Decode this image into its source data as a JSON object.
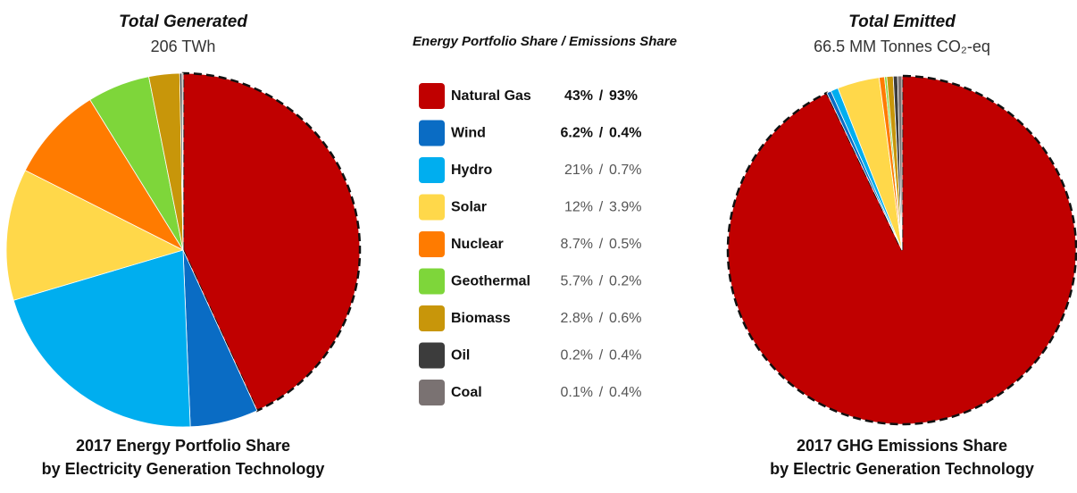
{
  "chart_data": [
    {
      "type": "pie",
      "title": "Total Generated",
      "subtitle": "206 TWh",
      "caption": [
        "2017 Energy Portfolio Share",
        "by Electricity Generation Technology"
      ],
      "categories": [
        "Natural Gas",
        "Wind",
        "Hydro",
        "Solar",
        "Nuclear",
        "Geothermal",
        "Biomass",
        "Oil",
        "Coal"
      ],
      "values": [
        43,
        6.2,
        21,
        12,
        8.7,
        5.7,
        2.8,
        0.2,
        0.1
      ],
      "value_labels": [
        "43%",
        "6.2%",
        "21%",
        "12%",
        "8.7%",
        "5.7%",
        "2.8%",
        "0.2%",
        "0.1%"
      ],
      "colors": [
        "#c00000",
        "#0a6cc4",
        "#00aeef",
        "#ffd84a",
        "#ff7b00",
        "#7ed63a",
        "#c8960a",
        "#3c3c3c",
        "#7a7272"
      ]
    },
    {
      "type": "pie",
      "title": "Total Emitted",
      "subtitle": "66.5 MM Tonnes CO₂-eq",
      "caption": [
        "2017 GHG Emissions Share",
        "by Electric Generation Technology"
      ],
      "categories": [
        "Natural Gas",
        "Wind",
        "Hydro",
        "Solar",
        "Nuclear",
        "Geothermal",
        "Biomass",
        "Oil",
        "Coal"
      ],
      "values": [
        93,
        0.4,
        0.7,
        3.9,
        0.5,
        0.2,
        0.6,
        0.4,
        0.4
      ],
      "value_labels": [
        "93%",
        "0.4%",
        "0.7%",
        "3.9%",
        "0.5%",
        "0.2%",
        "0.6%",
        "0.4%",
        "0.4%"
      ],
      "colors": [
        "#c00000",
        "#0a6cc4",
        "#00aeef",
        "#ffd84a",
        "#ff7b00",
        "#7ed63a",
        "#c8960a",
        "#3c3c3c",
        "#7a7272"
      ]
    }
  ],
  "legend": {
    "title": "Energy Portfolio Share / Emissions Share",
    "separator": "/"
  }
}
